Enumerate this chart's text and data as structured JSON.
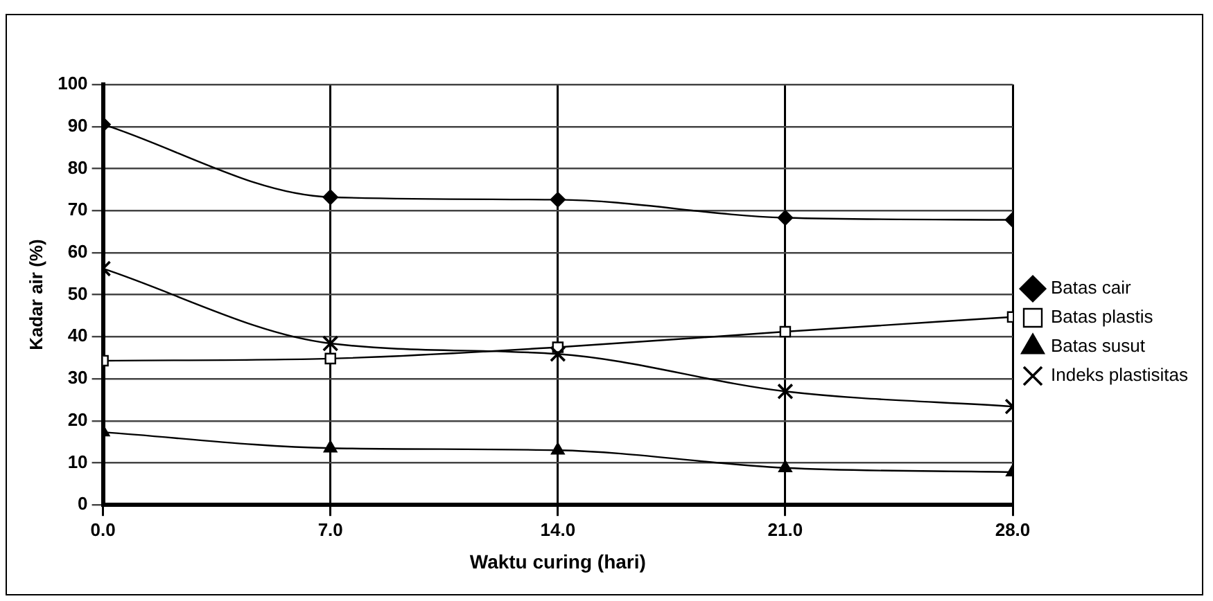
{
  "chart_data": {
    "type": "line",
    "xlabel": "Waktu curing (hari)",
    "ylabel": "Kadar air (%)",
    "x": [
      0,
      7,
      14,
      21,
      28
    ],
    "series": [
      {
        "name": "Batas cair",
        "color": "#000000",
        "marker": "diamond",
        "values": [
          90.5,
          73.2,
          72.6,
          68.3,
          67.8
        ]
      },
      {
        "name": "Batas plastis",
        "color": "#000000",
        "marker": "square",
        "values": [
          34.3,
          34.8,
          37.5,
          41.2,
          44.7
        ]
      },
      {
        "name": "Batas susut",
        "color": "#000000",
        "marker": "triangle",
        "values": [
          17.3,
          13.5,
          13.0,
          8.8,
          7.8
        ]
      },
      {
        "name": "Indeks plastisitas",
        "color": "#000000",
        "marker": "cross",
        "values": [
          56.2,
          38.4,
          35.9,
          27.0,
          23.4
        ]
      }
    ],
    "xlim": [
      0,
      28
    ],
    "xticks": [
      {
        "value": 0,
        "label": "0.0"
      },
      {
        "value": 7,
        "label": "7.0"
      },
      {
        "value": 14,
        "label": "14.0"
      },
      {
        "value": 21,
        "label": "21.0"
      },
      {
        "value": 28,
        "label": "28.0"
      }
    ],
    "ylim": [
      0,
      100
    ],
    "yticks": [
      0,
      10,
      20,
      30,
      40,
      50,
      60,
      70,
      80,
      90,
      100
    ],
    "grid": true,
    "legend": "right",
    "line_style": "solid"
  }
}
